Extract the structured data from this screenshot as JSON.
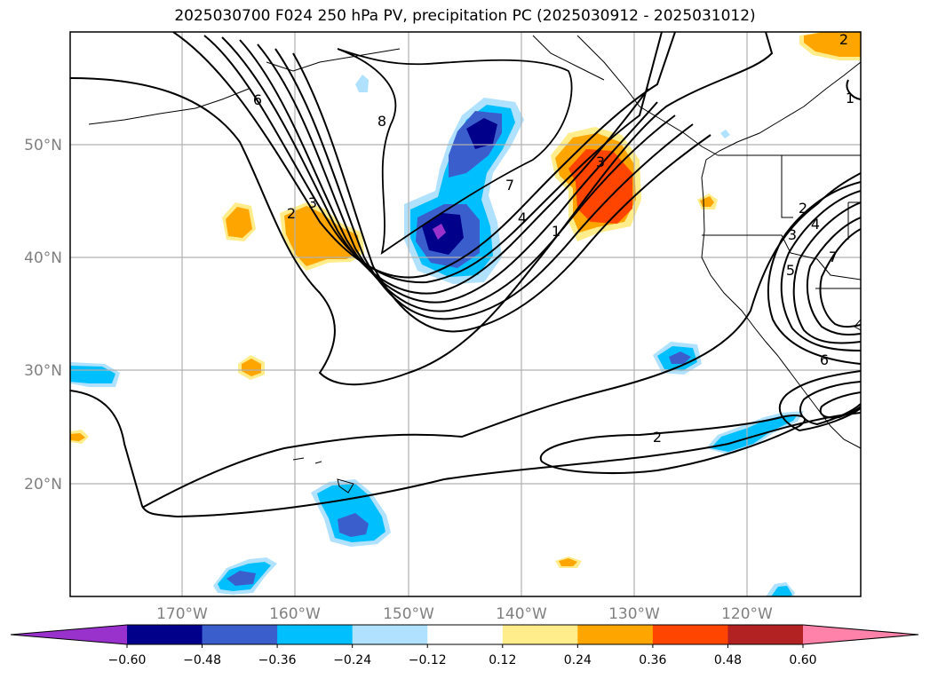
{
  "title": "2025030700 F024 250 hPa PV, precipitation PC (2025030912 - 2025031012)",
  "map": {
    "lat_labels": [
      "50°N",
      "40°N",
      "30°N",
      "20°N"
    ],
    "lon_labels": [
      "170°W",
      "160°W",
      "150°W",
      "140°W",
      "130°W",
      "120°W"
    ],
    "pv_contour_labels": [
      "6",
      "8",
      "2",
      "3",
      "7",
      "4",
      "1",
      "3",
      "2",
      "3",
      "4",
      "5",
      "7",
      "6",
      "2",
      "1",
      "2"
    ]
  },
  "colorbar": {
    "ticks": [
      "−0.60",
      "−0.48",
      "−0.36",
      "−0.24",
      "−0.12",
      "0.12",
      "0.24",
      "0.36",
      "0.48",
      "0.60"
    ],
    "colors": [
      "#9932cc",
      "#00008b",
      "#3a5fcd",
      "#00bfff",
      "#b0e2ff",
      "#ffffff",
      "#ffec8b",
      "#ffa500",
      "#ff4500",
      "#b22222",
      "#ff82ab"
    ]
  },
  "colors": {
    "grid": "#b0b0b0",
    "contour": "#000000",
    "coast": "#000000"
  }
}
